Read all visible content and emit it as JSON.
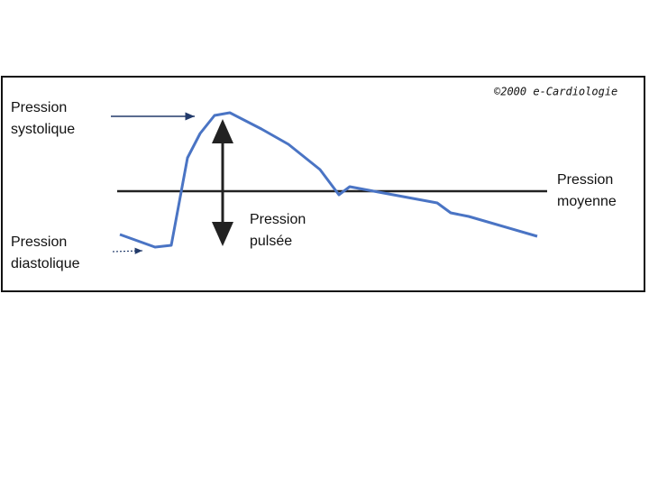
{
  "diagram": {
    "copyright": "©2000 e-Cardiologie",
    "labels": {
      "systolic": [
        "Pression",
        "systolique"
      ],
      "diastolic": [
        "Pression",
        "diastolique"
      ],
      "mean": [
        "Pression",
        "moyenne"
      ],
      "pulse": [
        "Pression",
        "pulsée"
      ]
    }
  }
}
